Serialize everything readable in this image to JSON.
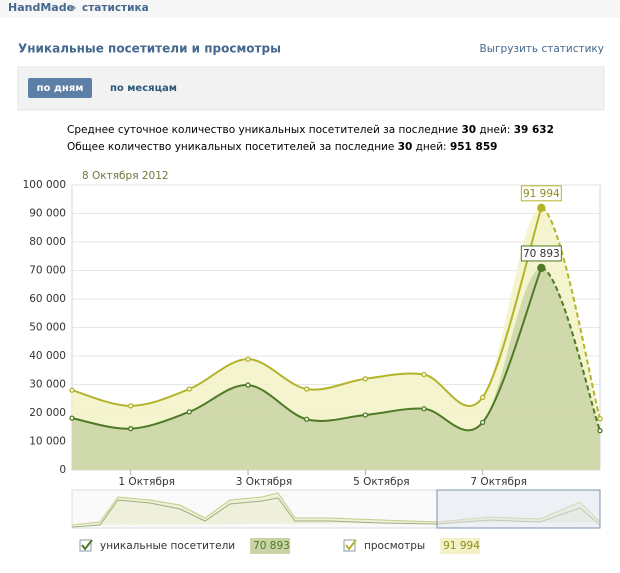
{
  "header": {
    "site": "HandMade",
    "separator": "»",
    "section": "статистика"
  },
  "panel": {
    "title": "Уникальные посетители и просмотры",
    "export": "Выгрузить статистику",
    "tabs": [
      "по дням",
      "по месяцам"
    ],
    "active_tab": 0
  },
  "summary": [
    [
      {
        "text": "Среднее суточное количество уникальных посетителей за последние ",
        "bold": false
      },
      {
        "text": "30",
        "bold": true
      },
      {
        "text": " дней: ",
        "bold": false
      },
      {
        "text": "39 632",
        "bold": true
      }
    ],
    [
      {
        "text": "Общее количество уникальных посетителей за последние ",
        "bold": false
      },
      {
        "text": "30",
        "bold": true
      },
      {
        "text": " дней: ",
        "bold": false
      },
      {
        "text": "951 859",
        "bold": true
      }
    ]
  ],
  "chart_data": {
    "type": "area",
    "subtitle": "8 Октября 2012",
    "x": [
      0,
      1,
      2,
      3,
      4,
      5,
      6,
      7,
      8,
      9
    ],
    "xlim": [
      0,
      9
    ],
    "xticks": [
      {
        "value": 1,
        "label": "1 Октября"
      },
      {
        "value": 3,
        "label": "3 Октября"
      },
      {
        "value": 5,
        "label": "5 Октября"
      },
      {
        "value": 7,
        "label": "7 Октября"
      }
    ],
    "ylim": [
      0,
      100000
    ],
    "yticks": [
      0,
      {
        "value": 10000,
        "label": "10 000"
      },
      {
        "value": 20000,
        "label": "20 000"
      },
      {
        "value": 30000,
        "label": "30 000"
      },
      {
        "value": 40000,
        "label": "40 000"
      },
      {
        "value": 50000,
        "label": "50 000"
      },
      {
        "value": 60000,
        "label": "60 000"
      },
      {
        "value": 70000,
        "label": "70 000"
      },
      {
        "value": 80000,
        "label": "80 000"
      },
      {
        "value": 90000,
        "label": "90 000"
      },
      {
        "value": 100000,
        "label": "100 000"
      }
    ],
    "grid": true,
    "series": [
      {
        "name": "просмотры",
        "color": "#b3b42a",
        "fill": "#f2f2c6",
        "values": [
          28000,
          22500,
          28400,
          38900,
          28400,
          32000,
          33500,
          25500,
          91994,
          18000
        ],
        "value_labels": [
          null,
          null,
          null,
          null,
          null,
          null,
          null,
          null,
          "91 994",
          null
        ]
      },
      {
        "name": "уникальные посетители",
        "color": "#4e7a27",
        "fill": "#c9d4a6",
        "values": [
          18200,
          14500,
          20400,
          29800,
          17800,
          19300,
          21500,
          16700,
          70893,
          13800
        ],
        "value_labels": [
          null,
          null,
          null,
          null,
          null,
          null,
          null,
          null,
          "70 893",
          null
        ]
      }
    ],
    "legend_order": [
      1,
      0
    ],
    "selected_index": 8
  }
}
